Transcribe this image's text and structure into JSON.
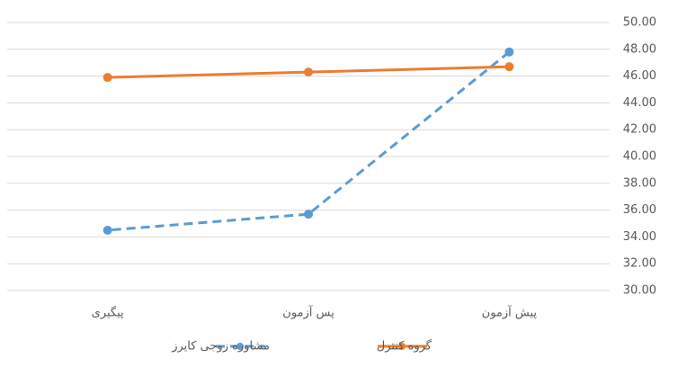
{
  "chart_data": {
    "type": "line",
    "categories": [
      "پیش آزمون",
      "پس آزمون",
      "پیگیری"
    ],
    "reverse_x": true,
    "series": [
      {
        "name": "مشاوره زوجی کایرز",
        "color": "#5b9bd5",
        "dashed": true,
        "values": [
          47.8,
          35.7,
          34.5
        ]
      },
      {
        "name": "گروه کنترل",
        "color": "#ed7d31",
        "dashed": false,
        "values": [
          46.7,
          46.3,
          45.9
        ]
      }
    ],
    "ylim": [
      30,
      50
    ],
    "yticks": [
      {
        "value": 30,
        "label": "30.00"
      },
      {
        "value": 32,
        "label": "32.00"
      },
      {
        "value": 34,
        "label": "34.00"
      },
      {
        "value": 36,
        "label": "36.00"
      },
      {
        "value": 38,
        "label": "38.00"
      },
      {
        "value": 40,
        "label": "40.00"
      },
      {
        "value": 42,
        "label": "42.00"
      },
      {
        "value": 44,
        "label": "44.00"
      },
      {
        "value": 46,
        "label": "46.00"
      },
      {
        "value": 48,
        "label": "48.00"
      },
      {
        "value": 50,
        "label": "50.00"
      }
    ],
    "y_axis_side": "right",
    "grid": true,
    "legend": "bottom"
  }
}
